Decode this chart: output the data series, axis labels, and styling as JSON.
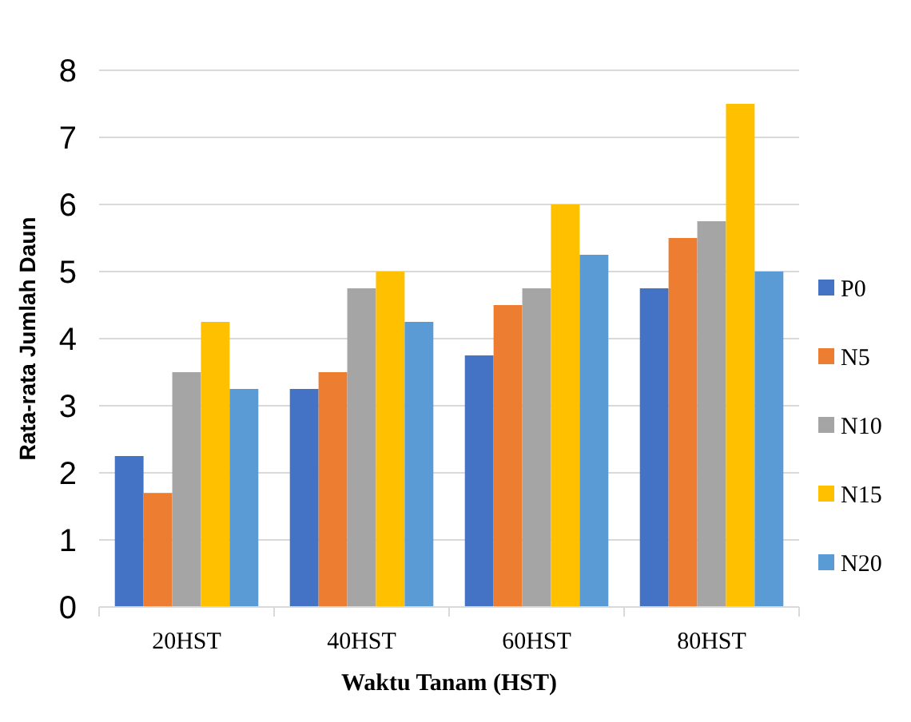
{
  "chart_data": {
    "type": "bar",
    "xlabel": "Waktu Tanam (HST)",
    "ylabel": "Rata-rata Jumlah Daun",
    "categories": [
      "20HST",
      "40HST",
      "60HST",
      "80HST"
    ],
    "series": [
      {
        "name": "P0",
        "color": "#4472c4",
        "values": [
          2.25,
          3.25,
          3.75,
          4.75
        ]
      },
      {
        "name": "N5",
        "color": "#ed7d31",
        "values": [
          1.7,
          3.5,
          4.5,
          5.5
        ]
      },
      {
        "name": "N10",
        "color": "#a5a5a5",
        "values": [
          3.5,
          4.75,
          4.75,
          5.75
        ]
      },
      {
        "name": "N15",
        "color": "#ffc000",
        "values": [
          4.25,
          5.0,
          6.0,
          7.5
        ]
      },
      {
        "name": "N20",
        "color": "#5b9bd5",
        "values": [
          3.25,
          4.25,
          5.25,
          5.0
        ]
      }
    ],
    "ylim": [
      0,
      8
    ],
    "yticks": [
      0,
      1,
      2,
      3,
      4,
      5,
      6,
      7,
      8
    ],
    "grid": "y",
    "legend": "right"
  }
}
